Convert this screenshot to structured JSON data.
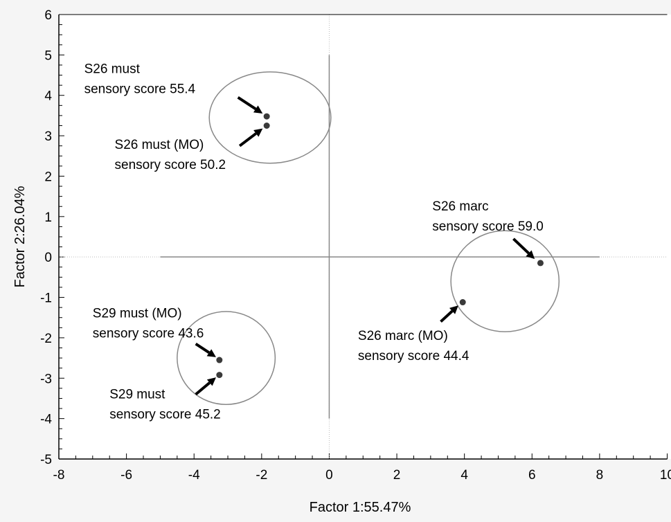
{
  "chart_data": {
    "type": "scatter",
    "title": "",
    "xlabel": "Factor 1:55.47%",
    "ylabel": "Factor 2:26.04%",
    "xlim": [
      -8,
      10
    ],
    "ylim": [
      -5,
      6
    ],
    "xticks": [
      -8,
      -6,
      -4,
      -2,
      0,
      2,
      4,
      6,
      8,
      10
    ],
    "yticks": [
      -5,
      -4,
      -3,
      -2,
      -1,
      0,
      1,
      2,
      3,
      4,
      5,
      6
    ],
    "grid": false,
    "legend": "none",
    "points": [
      {
        "id": "s26-must",
        "x": -1.85,
        "y": 3.48
      },
      {
        "id": "s26-must-mo",
        "x": -1.85,
        "y": 3.25
      },
      {
        "id": "s26-marc",
        "x": 6.25,
        "y": -0.15
      },
      {
        "id": "s26-marc-mo",
        "x": 3.95,
        "y": -1.12
      },
      {
        "id": "s29-must-mo",
        "x": -3.25,
        "y": -2.55
      },
      {
        "id": "s29-must",
        "x": -3.25,
        "y": -2.92
      }
    ],
    "reference_lines": {
      "horizontal": {
        "y": 0,
        "x_from": -5,
        "x_to": 8
      },
      "vertical": {
        "x": 0,
        "y_from": -4,
        "y_to": 5
      }
    },
    "ellipses": [
      {
        "cx": -1.75,
        "cy": 3.45,
        "rx": 1.8,
        "ry": 1.13
      },
      {
        "cx": 5.2,
        "cy": -0.6,
        "rx": 1.6,
        "ry": 1.25
      },
      {
        "cx": -3.05,
        "cy": -2.5,
        "rx": 1.45,
        "ry": 1.15
      }
    ],
    "annotations": [
      {
        "lines": [
          "S26 must",
          "sensory score 55.4"
        ],
        "x": -7.25,
        "y": 4.55
      },
      {
        "lines": [
          "S26 must (MO)",
          "sensory score 50.2"
        ],
        "x": -6.35,
        "y": 2.68
      },
      {
        "lines": [
          "S26 marc",
          "sensory score 59.0"
        ],
        "x": 3.05,
        "y": 1.15
      },
      {
        "lines": [
          "S26 marc (MO)",
          "sensory score 44.4"
        ],
        "x": 0.85,
        "y": -2.05
      },
      {
        "lines": [
          "S29 must (MO)",
          "sensory score 43.6"
        ],
        "x": -7.0,
        "y": -1.5
      },
      {
        "lines": [
          "S29 must",
          "sensory score 45.2"
        ],
        "x": -6.5,
        "y": -3.5
      }
    ],
    "arrows": [
      {
        "from": [
          -2.7,
          3.95
        ],
        "to": [
          -1.97,
          3.55
        ]
      },
      {
        "from": [
          -2.65,
          2.75
        ],
        "to": [
          -1.97,
          3.18
        ]
      },
      {
        "from": [
          5.45,
          0.45
        ],
        "to": [
          6.08,
          -0.05
        ]
      },
      {
        "from": [
          3.3,
          -1.6
        ],
        "to": [
          3.82,
          -1.2
        ]
      },
      {
        "from": [
          -3.95,
          -2.15
        ],
        "to": [
          -3.35,
          -2.48
        ]
      },
      {
        "from": [
          -3.95,
          -3.4
        ],
        "to": [
          -3.35,
          -2.98
        ]
      }
    ]
  }
}
